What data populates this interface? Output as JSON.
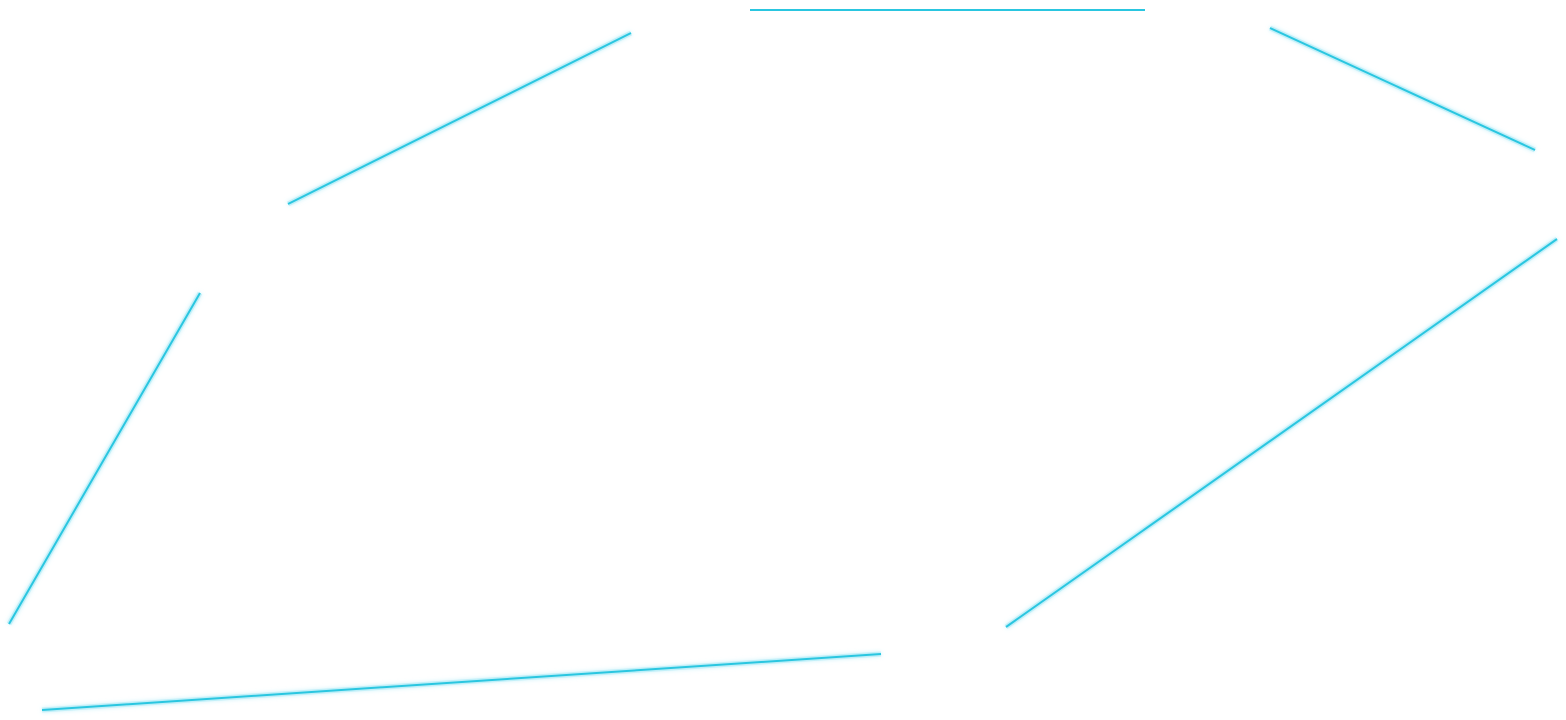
{
  "colors": {
    "background": "#ffffff",
    "stroke": "#2ac6e0",
    "glow": "#9fe8f5"
  }
}
